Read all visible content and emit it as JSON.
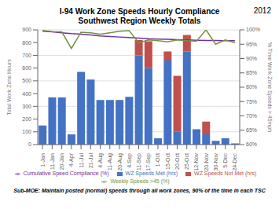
{
  "chart_data": {
    "type": "bar",
    "title": "I-94 Work Zone Speeds Hourly Compliance\nSouthwest Region Weekly Totals",
    "subtitle": "Sub-MOE: Maintain posted (normal) speeds through all work zones, 90% of the time in each TSC",
    "annotations": [
      "2012"
    ],
    "y_label": "Total Work Zone Hours",
    "y2_label": "% Time Work Zone Speeds > 45mph",
    "categories": [
      "1-Jan",
      "11-Jan",
      "20-Jan",
      "4-Apr",
      "11-Jul",
      "21-Jul",
      "4-Aug",
      "11-Aug",
      "20-Aug",
      "4-Sep",
      "11-Sep",
      "17-Sep",
      "1-Oct",
      "15-Oct",
      "20-Oct",
      "25-Oct",
      "12-Nov",
      "20-Nov",
      "30-Nov",
      "5-Dec",
      "24-Dec"
    ],
    "series": [
      {
        "name": "WZ Speeds Met (hrs)",
        "type": "bar",
        "color": "#4472C4",
        "values": [
          150,
          370,
          370,
          80,
          570,
          510,
          350,
          350,
          350,
          375,
          700,
          600,
          50,
          660,
          100,
          730,
          120,
          80,
          30,
          50,
          10
        ]
      },
      {
        "name": "WZ Speeds Not Met (hrs)",
        "type": "bar",
        "color": "#C0504D",
        "values": [
          0,
          0,
          0,
          0,
          0,
          0,
          0,
          0,
          0,
          0,
          120,
          210,
          0,
          70,
          440,
          130,
          0,
          100,
          0,
          0,
          0
        ]
      },
      {
        "name": "Cumulative Speed Compliance (%)",
        "type": "line",
        "axis": "y2",
        "color": "#7030A0",
        "values": [
          99.5,
          99.3,
          99.0,
          98.7,
          98.5,
          98.2,
          97.9,
          97.7,
          97.5,
          97.3,
          97.1,
          96.9,
          96.8,
          96.7,
          96.6,
          96.5,
          96.4,
          96.3,
          96.3,
          96.2,
          96.2
        ]
      },
      {
        "name": "Weekly Speeds >45 (%)",
        "type": "line",
        "axis": "y2",
        "color": "#76923C",
        "values": [
          99.8,
          99.4,
          99.3,
          93.5,
          99.2,
          99.0,
          98.5,
          99.0,
          99.5,
          99.7,
          95.5,
          96.5,
          96.2,
          95.8,
          96.5,
          96.2,
          96.0,
          100.0,
          95.0,
          96.5,
          95.5
        ]
      }
    ],
    "ylim": [
      0,
      900
    ],
    "yticks": [
      0,
      100,
      200,
      300,
      400,
      500,
      600,
      700,
      800,
      900
    ],
    "y2lim": [
      60,
      100
    ],
    "y2ticks": [
      {
        "value": 60,
        "label": "60%"
      },
      {
        "value": 65,
        "label": "65%"
      },
      {
        "value": 70,
        "label": "70%"
      },
      {
        "value": 75,
        "label": "75%"
      },
      {
        "value": 80,
        "label": "80%"
      },
      {
        "value": 85,
        "label": "85%"
      },
      {
        "value": 90,
        "label": "90%"
      },
      {
        "value": 95,
        "label": "95%"
      },
      {
        "value": 100,
        "label": "100%"
      }
    ],
    "stacked": true,
    "grid": true,
    "legend": "bottom"
  }
}
